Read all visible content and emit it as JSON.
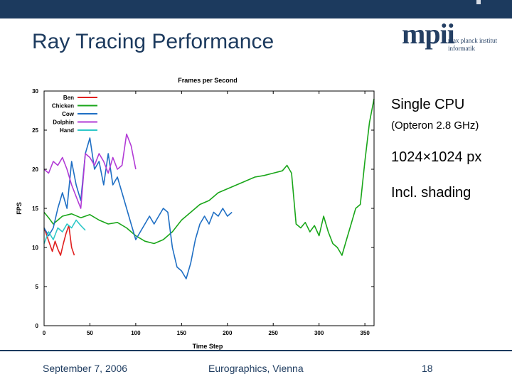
{
  "slide": {
    "title": "Ray Tracing Performance",
    "logo": {
      "letters": "mpii",
      "line1": "max planck institut",
      "line2": "informatik"
    },
    "bullets": {
      "cpu": "Single CPU",
      "cpu_detail": "(Opteron 2.8 GHz)",
      "resolution": "1024×1024 px",
      "shading": "Incl. shading"
    },
    "footer": {
      "date": "September 7, 2006",
      "venue": "Eurographics, Vienna",
      "page": "18"
    },
    "colors": {
      "bar": "#1c3a5e",
      "text": "#1c3a5e"
    }
  },
  "chart_data": {
    "type": "line",
    "title": "Frames per Second",
    "xlabel": "Time Step",
    "ylabel": "FPS",
    "xlim": [
      0,
      360
    ],
    "ylim": [
      0,
      30
    ],
    "xticks": [
      0,
      50,
      100,
      150,
      200,
      250,
      300,
      350
    ],
    "yticks": [
      0,
      5,
      10,
      15,
      20,
      25,
      30
    ],
    "legend_position": "top-left",
    "series": [
      {
        "name": "Ben",
        "color": "#e0201f",
        "x": [
          0,
          3,
          6,
          9,
          12,
          15,
          18,
          21,
          24,
          27,
          30,
          33
        ],
        "y": [
          12.5,
          11.5,
          10.5,
          9.5,
          10.8,
          9.8,
          9.0,
          10.5,
          11.8,
          12.8,
          10.0,
          9.0
        ]
      },
      {
        "name": "Chicken",
        "color": "#1aa61a",
        "x": [
          0,
          5,
          10,
          20,
          30,
          40,
          50,
          60,
          70,
          80,
          90,
          100,
          110,
          120,
          130,
          140,
          150,
          160,
          170,
          180,
          190,
          200,
          210,
          220,
          230,
          240,
          250,
          260,
          265,
          270,
          275,
          280,
          285,
          290,
          295,
          300,
          305,
          310,
          315,
          320,
          325,
          330,
          335,
          340,
          345,
          350,
          355,
          360
        ],
        "y": [
          14.5,
          13.8,
          13.0,
          14.0,
          14.3,
          13.8,
          14.2,
          13.5,
          13.0,
          13.2,
          12.5,
          11.5,
          10.8,
          10.5,
          11.0,
          12.0,
          13.5,
          14.5,
          15.5,
          16.0,
          17.0,
          17.5,
          18.0,
          18.5,
          19.0,
          19.2,
          19.5,
          19.8,
          20.5,
          19.5,
          13.0,
          12.5,
          13.2,
          12.0,
          12.8,
          11.5,
          14.0,
          12.0,
          10.5,
          10.0,
          9.0,
          11.0,
          13.0,
          15.0,
          15.5,
          21.0,
          26.0,
          29.0
        ]
      },
      {
        "name": "Cow",
        "color": "#1f6fc4",
        "x": [
          0,
          5,
          10,
          15,
          20,
          25,
          30,
          35,
          40,
          45,
          50,
          55,
          60,
          65,
          70,
          75,
          80,
          85,
          90,
          95,
          100,
          105,
          110,
          115,
          120,
          125,
          130,
          135,
          140,
          145,
          150,
          155,
          160,
          165,
          170,
          175,
          180,
          185,
          190,
          195,
          200,
          205
        ],
        "y": [
          12.5,
          11.5,
          12.5,
          15.0,
          17.0,
          15.0,
          21.0,
          18.0,
          16.0,
          22.0,
          24.0,
          20.0,
          21.0,
          18.0,
          22.0,
          18.0,
          19.0,
          17.0,
          15.0,
          13.0,
          11.0,
          12.0,
          13.0,
          14.0,
          13.0,
          14.0,
          15.0,
          14.5,
          10.0,
          7.5,
          7.0,
          6.0,
          8.0,
          11.0,
          13.0,
          14.0,
          13.0,
          14.5,
          14.0,
          15.0,
          14.0,
          14.5
        ]
      },
      {
        "name": "Dolphin",
        "color": "#b23bd6",
        "x": [
          0,
          5,
          10,
          15,
          20,
          25,
          30,
          35,
          40,
          45,
          50,
          55,
          60,
          65,
          70,
          75,
          80,
          85,
          90,
          95,
          100
        ],
        "y": [
          20.0,
          19.5,
          21.0,
          20.5,
          21.5,
          20.0,
          18.0,
          16.5,
          15.0,
          22.0,
          21.5,
          20.5,
          22.0,
          21.0,
          19.5,
          21.5,
          20.0,
          20.5,
          24.5,
          23.0,
          20.0
        ]
      },
      {
        "name": "Hand",
        "color": "#2ec8c8",
        "x": [
          0,
          5,
          10,
          15,
          20,
          25,
          30,
          35,
          40,
          45
        ],
        "y": [
          10.5,
          12.0,
          11.0,
          12.5,
          12.0,
          13.0,
          12.5,
          13.5,
          12.8,
          12.2
        ]
      }
    ]
  }
}
